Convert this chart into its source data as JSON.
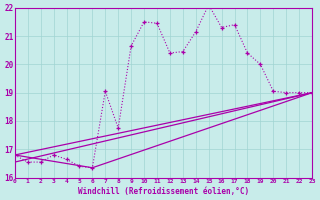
{
  "bg_color": "#c8ecea",
  "line_color": "#aa00aa",
  "grid_color": "#a0d4d2",
  "xlabel": "Windchill (Refroidissement éolien,°C)",
  "xlim": [
    0,
    23
  ],
  "ylim": [
    16,
    22
  ],
  "yticks": [
    16,
    17,
    18,
    19,
    20,
    21,
    22
  ],
  "xticks": [
    0,
    1,
    2,
    3,
    4,
    5,
    6,
    7,
    8,
    9,
    10,
    11,
    12,
    13,
    14,
    15,
    16,
    17,
    18,
    19,
    20,
    21,
    22,
    23
  ],
  "jagged_x": [
    0,
    1,
    2,
    3,
    4,
    5,
    6,
    7,
    8,
    9,
    10,
    11,
    12,
    13,
    14,
    15,
    16,
    17,
    18,
    19,
    20,
    21,
    22,
    23
  ],
  "jagged_y": [
    16.8,
    16.55,
    16.55,
    16.8,
    16.65,
    16.4,
    16.35,
    19.05,
    17.75,
    20.65,
    21.5,
    21.45,
    20.4,
    20.45,
    21.15,
    22.1,
    21.3,
    21.4,
    20.4,
    20.0,
    19.05,
    19.0,
    19.0,
    19.0
  ],
  "straight_lines": [
    {
      "x": [
        0,
        23
      ],
      "y": [
        16.55,
        19.0
      ]
    },
    {
      "x": [
        0,
        23
      ],
      "y": [
        16.8,
        19.0
      ]
    },
    {
      "x": [
        0,
        6,
        23
      ],
      "y": [
        16.8,
        16.35,
        19.0
      ]
    }
  ]
}
